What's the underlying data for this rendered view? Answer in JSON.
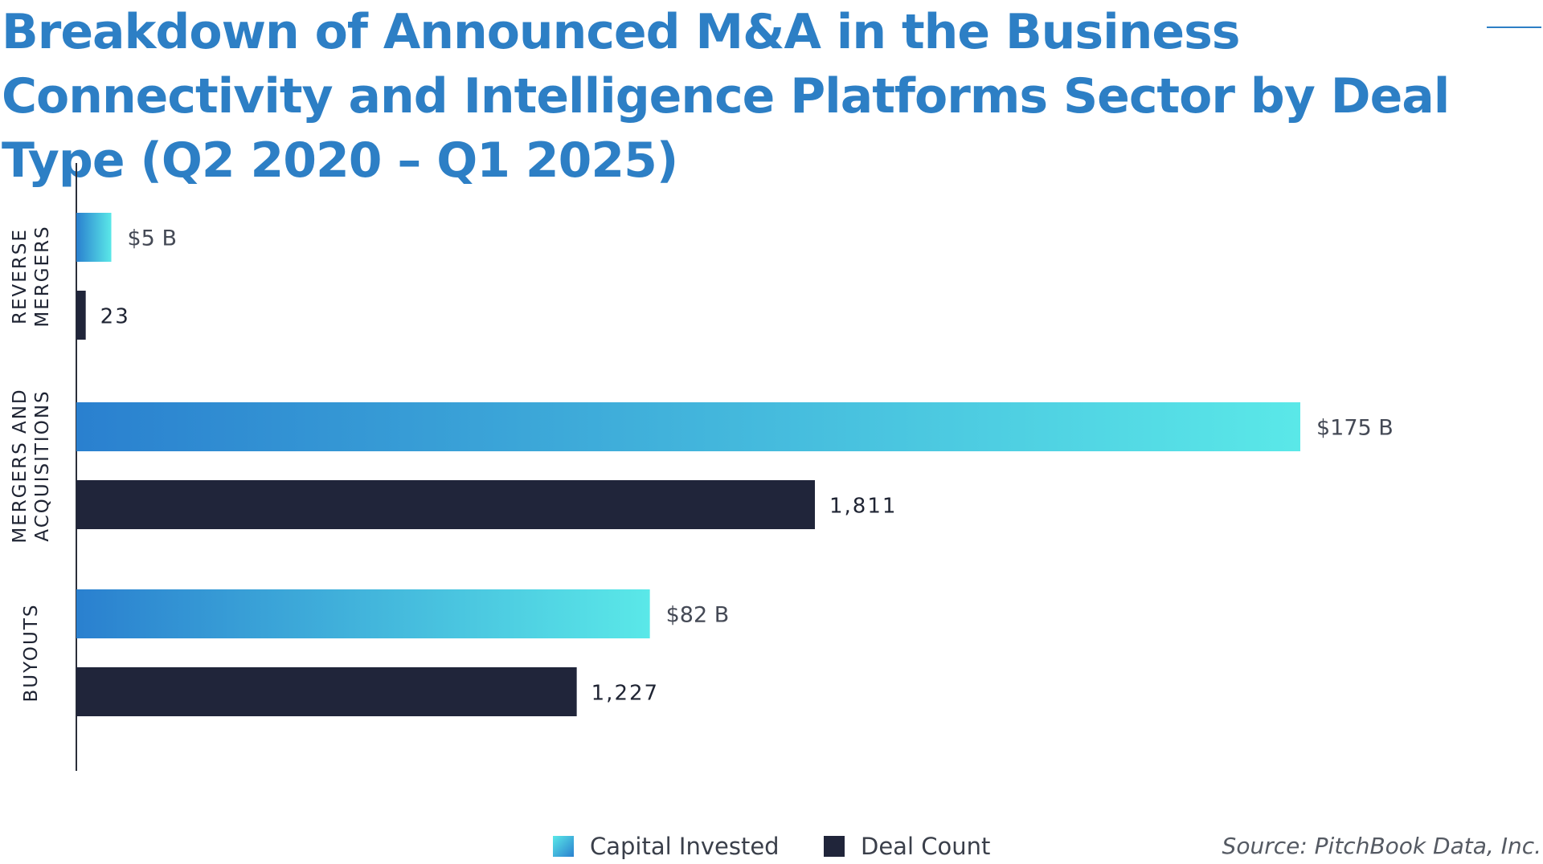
{
  "chart_data": {
    "type": "bar",
    "orientation": "horizontal",
    "title": "Breakdown of Announced M&A in the Business Connectivity and Intelligence Platforms Sector by Deal Type (Q2 2020 – Q1 2025)",
    "categories": [
      "REVERSE MERGERS",
      "MERGERS AND ACQUISITIONS",
      "BUYOUTS"
    ],
    "category_label_lines": [
      [
        "REVERSE",
        "MERGERS"
      ],
      [
        "MERGERS AND",
        "ACQUISITIONS"
      ],
      [
        "BUYOUTS"
      ]
    ],
    "series": [
      {
        "name": "Capital Invested",
        "unit": "B",
        "values": [
          5,
          175,
          82
        ],
        "value_labels": [
          "$5 B",
          "$175 B",
          "$82 B"
        ],
        "color_start": "#2a80cf",
        "color_end": "#5ae8e8"
      },
      {
        "name": "Deal Count",
        "values": [
          23,
          1811,
          1227
        ],
        "value_labels": [
          "23",
          "1,811",
          "1,227"
        ],
        "color": "#20253a"
      }
    ],
    "legend_position": "bottom-center",
    "grid": false
  },
  "source": "Source: PitchBook Data, Inc."
}
